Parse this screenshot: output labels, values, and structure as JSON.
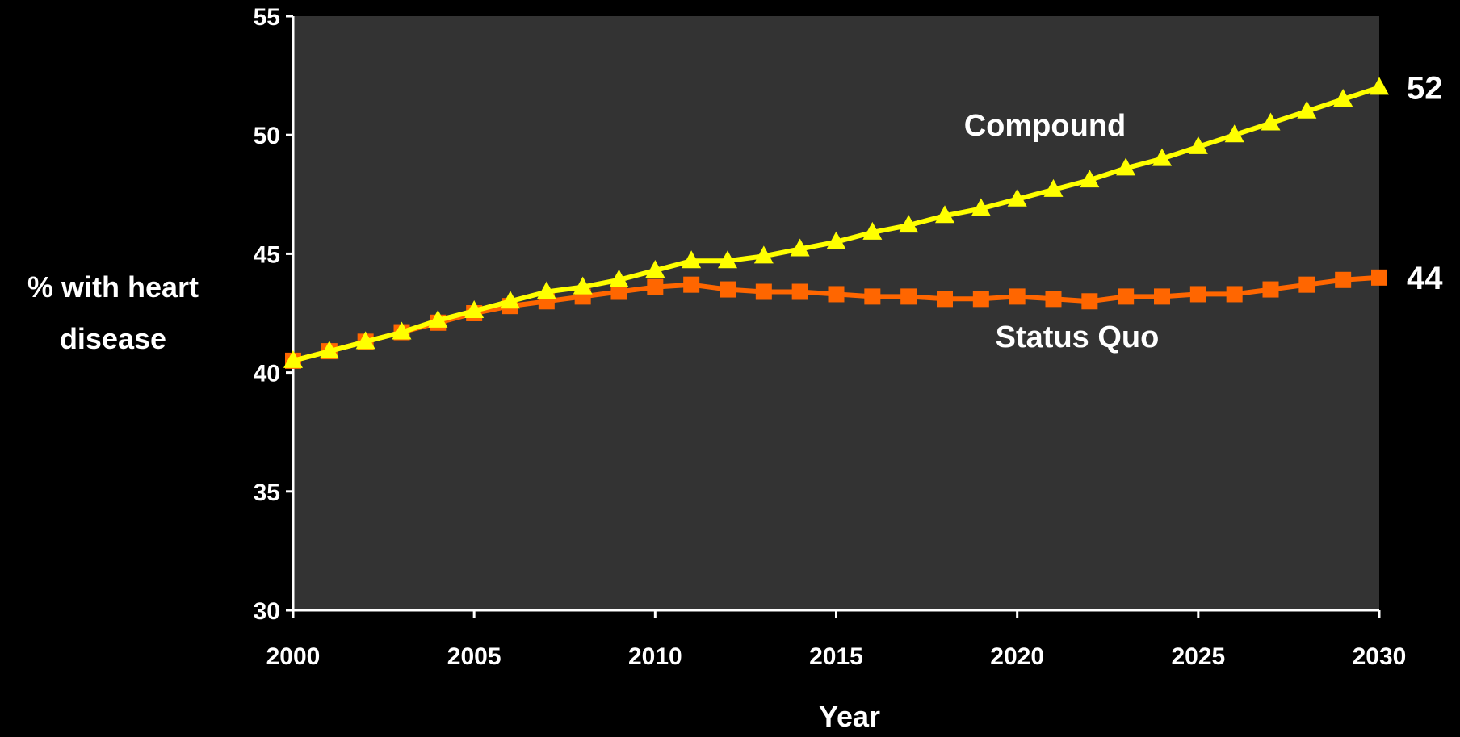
{
  "chart_data": {
    "type": "line",
    "xlabel": "Year",
    "ylabel_lines": [
      "% with heart",
      "disease"
    ],
    "xlim": [
      2000,
      2030
    ],
    "ylim": [
      30,
      55
    ],
    "x_ticks": [
      2000,
      2005,
      2010,
      2015,
      2020,
      2025,
      2030
    ],
    "y_ticks": [
      30,
      35,
      40,
      45,
      50,
      55
    ],
    "grid": false,
    "plot_background": "#333333",
    "page_background": "#000000",
    "x": [
      2000,
      2001,
      2002,
      2003,
      2004,
      2005,
      2006,
      2007,
      2008,
      2009,
      2010,
      2011,
      2012,
      2013,
      2014,
      2015,
      2016,
      2017,
      2018,
      2019,
      2020,
      2021,
      2022,
      2023,
      2024,
      2025,
      2026,
      2027,
      2028,
      2029,
      2030
    ],
    "series": [
      {
        "name": "Compound",
        "color": "#ffff00",
        "marker": "triangle",
        "end_label": "52",
        "values": [
          40.5,
          40.9,
          41.3,
          41.7,
          42.2,
          42.6,
          43.0,
          43.4,
          43.6,
          43.9,
          44.3,
          44.7,
          44.7,
          44.9,
          45.2,
          45.5,
          45.9,
          46.2,
          46.6,
          46.9,
          47.3,
          47.7,
          48.1,
          48.6,
          49.0,
          49.5,
          50.0,
          50.5,
          51.0,
          51.5,
          52.0
        ]
      },
      {
        "name": "Status Quo",
        "color": "#ff6600",
        "marker": "square",
        "end_label": "44",
        "values": [
          40.5,
          40.9,
          41.3,
          41.7,
          42.1,
          42.5,
          42.8,
          43.0,
          43.2,
          43.4,
          43.6,
          43.7,
          43.5,
          43.4,
          43.4,
          43.3,
          43.2,
          43.2,
          43.1,
          43.1,
          43.2,
          43.1,
          43.0,
          43.2,
          43.2,
          43.3,
          43.3,
          43.5,
          43.7,
          43.9,
          44.0
        ]
      }
    ]
  }
}
